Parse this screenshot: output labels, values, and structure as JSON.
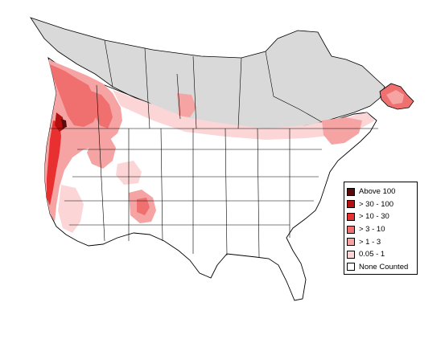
{
  "map": {
    "colors": {
      "above_100": "#5a0a0a",
      "30_100": "#b50f0f",
      "10_30": "#e83030",
      "3_10": "#f07070",
      "1_3": "#f5a3a3",
      "005_1": "#fcd6d6",
      "none": "#ffffff",
      "no_data": "#d9d9d9",
      "border": "#000000"
    }
  },
  "legend": {
    "items": [
      {
        "label": "Above 100",
        "color": "#5a0a0a"
      },
      {
        "label": "> 30 - 100",
        "color": "#b50f0f"
      },
      {
        "label": "> 10 - 30",
        "color": "#e83030"
      },
      {
        "label": "> 3 - 10",
        "color": "#f07070"
      },
      {
        "label": "> 1 - 3",
        "color": "#f5a3a3"
      },
      {
        "label": "0.05 - 1",
        "color": "#fcd6d6"
      },
      {
        "label": "None Counted",
        "color": "#ffffff"
      }
    ]
  }
}
